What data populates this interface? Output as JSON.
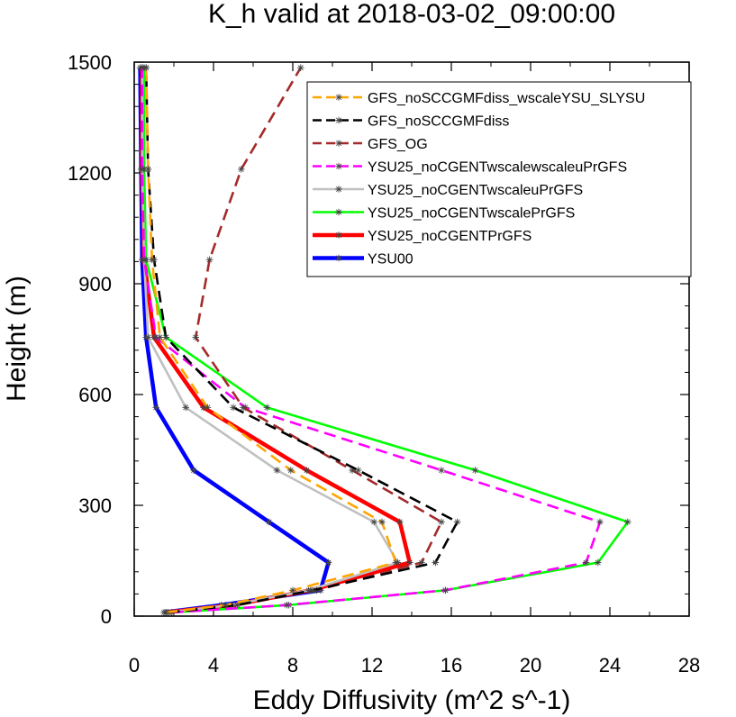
{
  "chart_data": {
    "type": "line",
    "title": "K_h valid at 2018-03-02_09:00:00",
    "xlabel": "Eddy Diffusivity (m^2 s^-1)",
    "ylabel": "Height (m)",
    "xlim": [
      0,
      28
    ],
    "ylim": [
      0,
      1500
    ],
    "xticks": [
      "0",
      "4",
      "8",
      "12",
      "16",
      "20",
      "24",
      "28"
    ],
    "yticks": [
      "0",
      "300",
      "600",
      "900",
      "1200",
      "1500"
    ],
    "legend_position": "top-right",
    "series": [
      {
        "name": "GFS_noSCCGMFdiss_wscaleYSU_SLYSU",
        "color": "#ffa500",
        "dash": "dash",
        "x": [
          1.6,
          4.6,
          8.0,
          13.2,
          12.5,
          7.9,
          3.7,
          1.3,
          0.9,
          0.7,
          0.6
        ],
        "y": [
          10,
          30,
          70,
          145,
          255,
          395,
          565,
          755,
          965,
          1210,
          1485
        ]
      },
      {
        "name": "GFS_noSCCGMFdiss",
        "color": "#000000",
        "dash": "dash",
        "x": [
          1.7,
          5.2,
          9.0,
          15.2,
          16.3,
          11.3,
          5.0,
          1.6,
          1.0,
          0.7,
          0.6
        ],
        "y": [
          10,
          30,
          70,
          145,
          255,
          395,
          565,
          755,
          965,
          1210,
          1485
        ]
      },
      {
        "name": "GFS_OG",
        "color": "#a52a2a",
        "dash": "dash",
        "x": [
          1.7,
          5.2,
          9.2,
          14.5,
          15.5,
          11.0,
          5.5,
          3.1,
          3.8,
          5.4,
          8.4
        ],
        "y": [
          10,
          30,
          70,
          145,
          255,
          395,
          565,
          755,
          965,
          1210,
          1485
        ]
      },
      {
        "name": "YSU25_noCGENTwscalewscaleuPrGFS",
        "color": "#ff00ff",
        "dash": "dash",
        "x": [
          1.9,
          7.7,
          15.7,
          22.8,
          23.5,
          15.5,
          5.6,
          1.1,
          0.5,
          0.4,
          0.4
        ],
        "y": [
          10,
          30,
          70,
          145,
          255,
          395,
          565,
          755,
          965,
          1210,
          1485
        ]
      },
      {
        "name": "YSU25_noCGENTwscaleuPrGFS",
        "color": "#c0c0c0",
        "dash": "solid",
        "x": [
          1.6,
          4.9,
          8.8,
          13.3,
          12.1,
          7.2,
          2.6,
          0.7,
          0.5,
          0.4,
          0.4
        ],
        "y": [
          10,
          30,
          70,
          145,
          255,
          395,
          565,
          755,
          965,
          1210,
          1485
        ]
      },
      {
        "name": "YSU25_noCGENTwscalePrGFS",
        "color": "#00ff00",
        "dash": "solid",
        "x": [
          1.9,
          7.8,
          15.7,
          23.4,
          24.9,
          17.2,
          6.7,
          1.6,
          0.6,
          0.5,
          0.5
        ],
        "y": [
          10,
          30,
          70,
          145,
          255,
          395,
          565,
          755,
          965,
          1210,
          1485
        ]
      },
      {
        "name": "YSU25_noCGENTPrGFS",
        "color": "#ff0000",
        "dash": "solid",
        "x": [
          1.6,
          5.0,
          8.9,
          13.9,
          13.4,
          8.7,
          3.5,
          1.0,
          0.5,
          0.4,
          0.4
        ],
        "y": [
          10,
          30,
          70,
          145,
          255,
          395,
          565,
          755,
          965,
          1210,
          1485
        ]
      },
      {
        "name": "YSU00",
        "color": "#0000ff",
        "dash": "solid",
        "x": [
          1.5,
          4.4,
          9.4,
          9.8,
          6.8,
          3.0,
          1.1,
          0.6,
          0.4,
          0.35,
          0.3
        ],
        "y": [
          10,
          30,
          70,
          145,
          255,
          395,
          565,
          755,
          965,
          1210,
          1485
        ]
      }
    ]
  }
}
